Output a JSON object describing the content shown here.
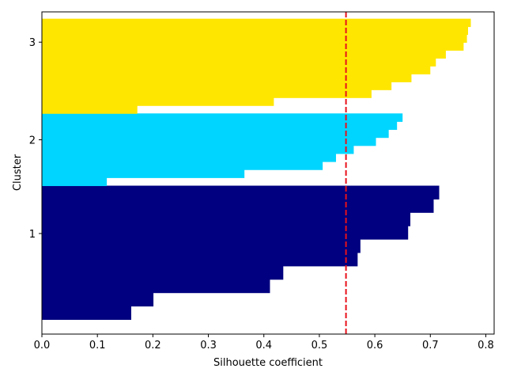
{
  "chart_data": {
    "type": "bar",
    "orientation": "horizontal",
    "title": "",
    "xlabel": "Silhouette coefficient",
    "ylabel": "Cluster",
    "xlim": [
      0.0,
      0.815
    ],
    "ylim": [
      0.8,
      4.1
    ],
    "xticks": [
      "0.0",
      "0.1",
      "0.2",
      "0.3",
      "0.4",
      "0.5",
      "0.6",
      "0.7",
      "0.8"
    ],
    "yticks": [
      {
        "label": "1",
        "value": 1.83
      },
      {
        "label": "2",
        "value": 2.79
      },
      {
        "label": "3",
        "value": 3.79
      }
    ],
    "grid": false,
    "legend": "none",
    "average_line": {
      "value": 0.548,
      "color": "#e8111b",
      "style": "dashed"
    },
    "series": [
      {
        "cluster": "1",
        "color": "#000080",
        "y_start": 0.95,
        "y_end": 2.32,
        "values": [
          0.161,
          0.201,
          0.411,
          0.435,
          0.569,
          0.574,
          0.66,
          0.664,
          0.706,
          0.716
        ]
      },
      {
        "cluster": "2",
        "color": "#00d5ff",
        "y_start": 2.32,
        "y_end": 3.06,
        "values": [
          0.117,
          0.365,
          0.506,
          0.53,
          0.562,
          0.602,
          0.625,
          0.64,
          0.65
        ]
      },
      {
        "cluster": "3",
        "color": "#ffe600",
        "y_start": 3.06,
        "y_end": 4.03,
        "values": [
          0.172,
          0.418,
          0.594,
          0.63,
          0.666,
          0.7,
          0.71,
          0.728,
          0.76,
          0.766,
          0.768,
          0.773
        ]
      }
    ]
  }
}
